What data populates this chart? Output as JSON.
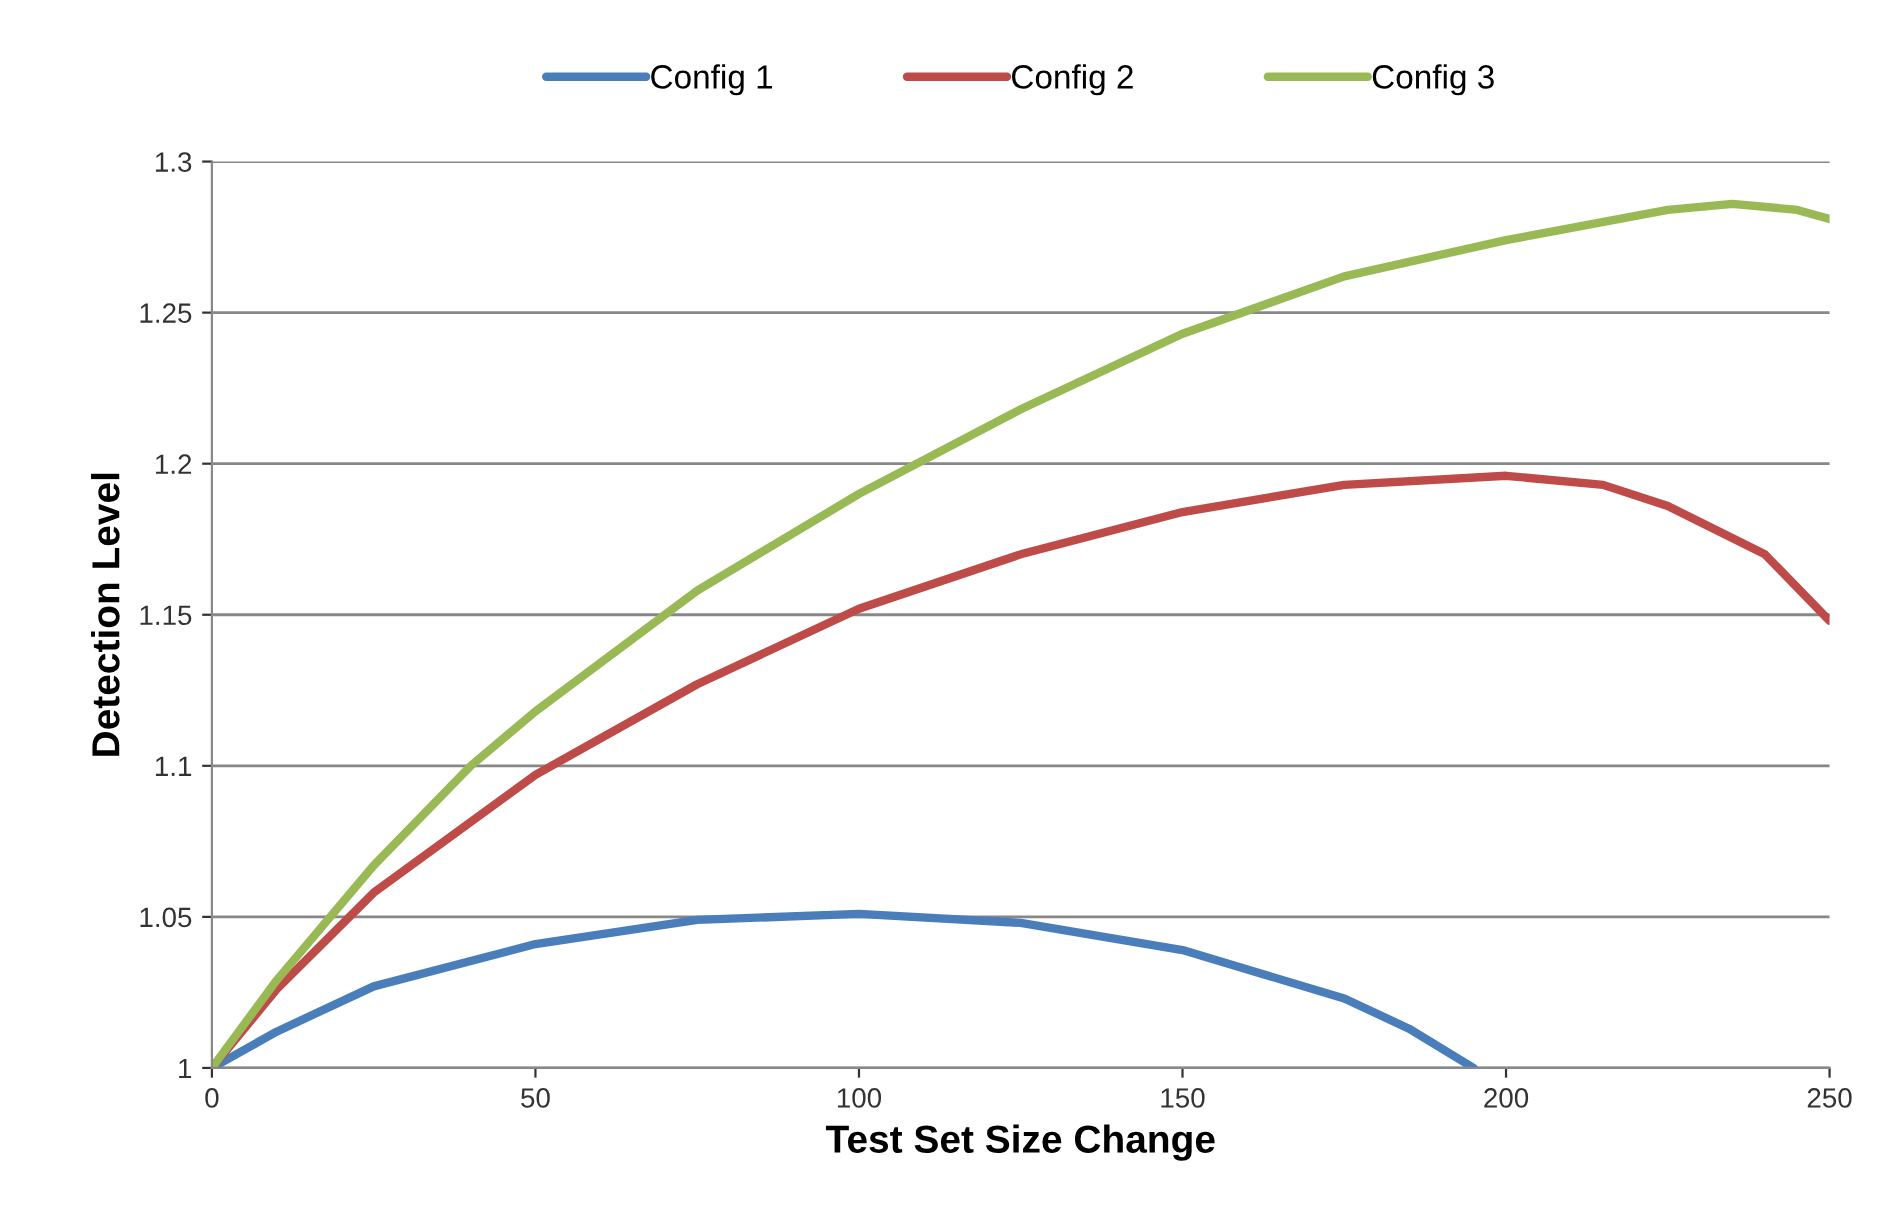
{
  "chart_data": {
    "type": "line",
    "xlabel": "Test Set Size Change",
    "ylabel": "Detection Level",
    "xlim": [
      0,
      250
    ],
    "xticks": [
      0,
      50,
      100,
      150,
      200,
      250
    ],
    "ylim": [
      1,
      1.3
    ],
    "yticks": [
      1,
      1.05,
      1.1,
      1.15,
      1.2,
      1.25,
      1.3
    ],
    "grid": "y",
    "legend": "top",
    "marker": "none",
    "line_style": "solid",
    "series": [
      {
        "name": "Config 1",
        "color": "#4a7ebb",
        "x": [
          0,
          10,
          25,
          50,
          75,
          100,
          125,
          150,
          175,
          185,
          195
        ],
        "values": [
          1.0,
          1.012,
          1.027,
          1.041,
          1.049,
          1.051,
          1.048,
          1.039,
          1.023,
          1.013,
          1.0
        ]
      },
      {
        "name": "Config 2",
        "color": "#be4b48",
        "x": [
          0,
          10,
          25,
          50,
          75,
          100,
          125,
          150,
          175,
          200,
          215,
          225,
          240,
          250
        ],
        "values": [
          1.0,
          1.026,
          1.058,
          1.097,
          1.127,
          1.152,
          1.17,
          1.184,
          1.193,
          1.196,
          1.193,
          1.186,
          1.17,
          1.148
        ]
      },
      {
        "name": "Config 3",
        "color": "#98b954",
        "x": [
          0,
          10,
          25,
          40,
          50,
          75,
          100,
          125,
          150,
          175,
          200,
          225,
          235,
          245,
          250
        ],
        "values": [
          1.0,
          1.029,
          1.067,
          1.1,
          1.118,
          1.158,
          1.19,
          1.218,
          1.243,
          1.262,
          1.274,
          1.284,
          1.286,
          1.284,
          1.281
        ]
      }
    ]
  }
}
